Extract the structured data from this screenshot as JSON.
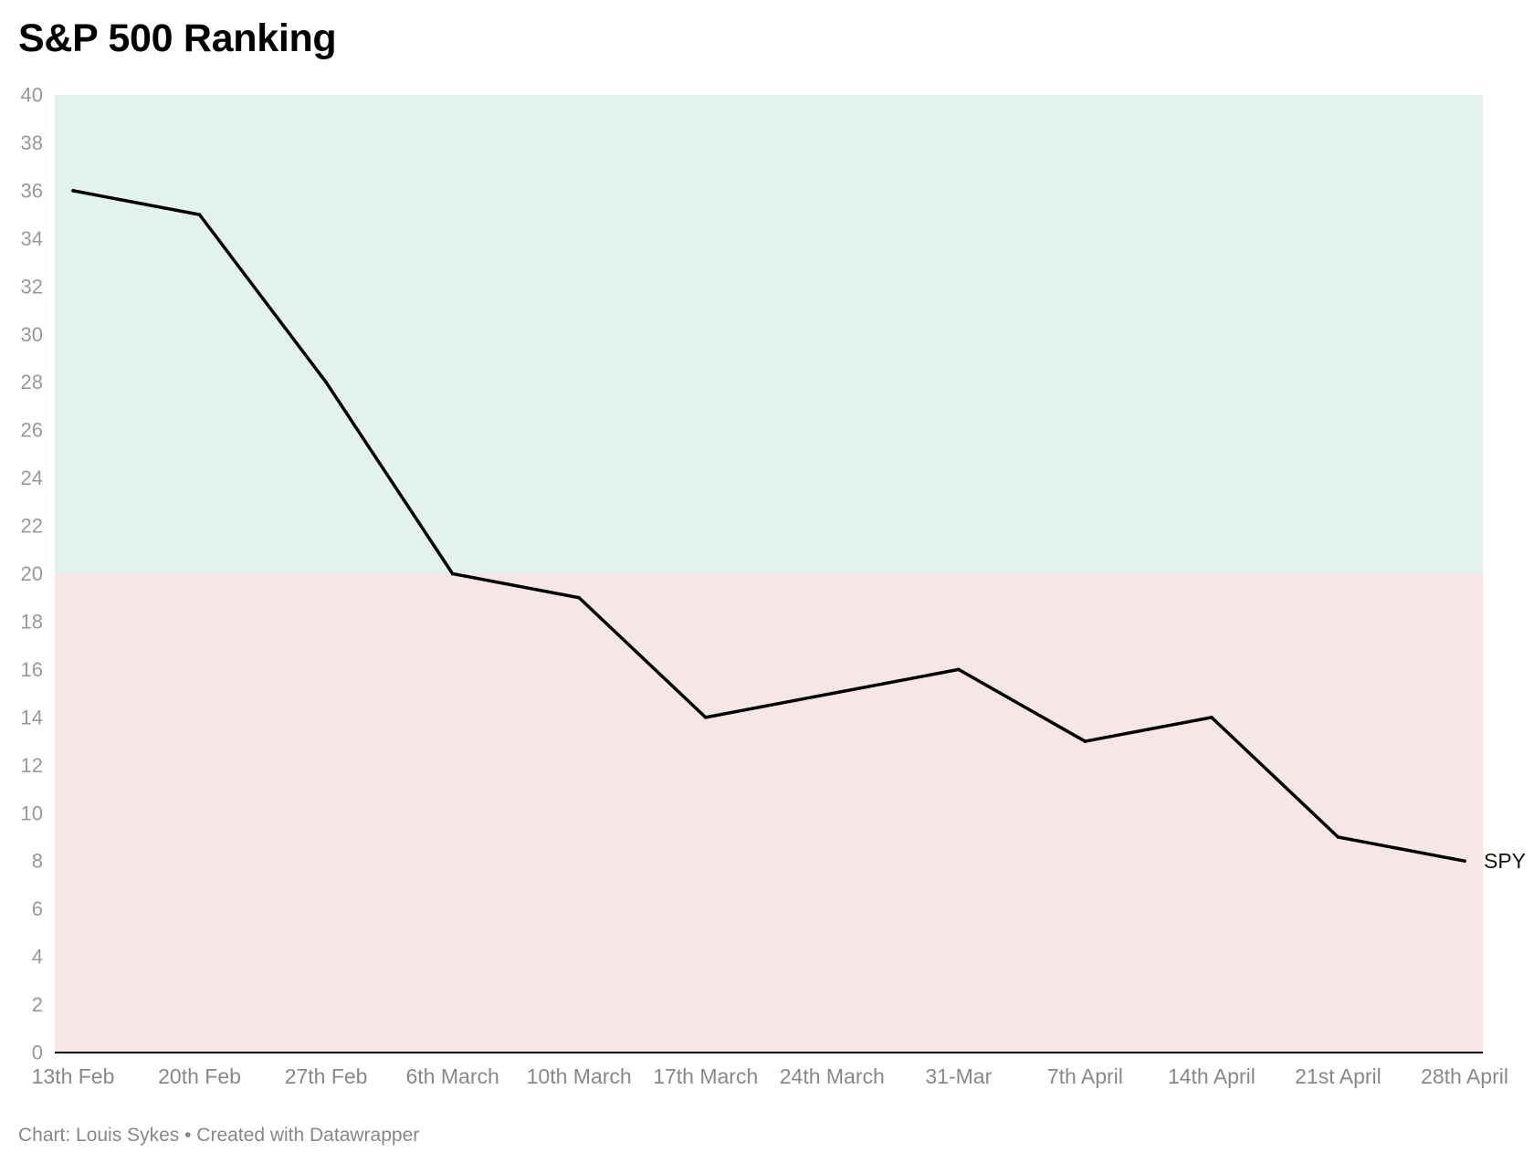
{
  "title": "S&P 500 Ranking",
  "footer": {
    "credit": "Chart: Louis Sykes",
    "separator": "•",
    "created_with": "Created with Datawrapper"
  },
  "colors": {
    "upper_band": "#e3f2ef",
    "lower_band": "#f7e6e6",
    "line": "#000000",
    "axis": "#000000"
  },
  "chart_data": {
    "type": "line",
    "title": "S&P 500 Ranking",
    "xlabel": "",
    "ylabel": "",
    "categories": [
      "13th Feb",
      "20th Feb",
      "27th Feb",
      "6th March",
      "10th March",
      "17th March",
      "24th March",
      "31-Mar",
      "7th April",
      "14th April",
      "21st April",
      "28th April"
    ],
    "series": [
      {
        "name": "SPY",
        "values": [
          36,
          35,
          28,
          20,
          19,
          14,
          15,
          16,
          13,
          14,
          9,
          8
        ]
      }
    ],
    "ylim": [
      0,
      40
    ],
    "yticks": [
      0,
      2,
      4,
      6,
      8,
      10,
      12,
      14,
      16,
      18,
      20,
      22,
      24,
      26,
      28,
      30,
      32,
      34,
      36,
      38,
      40
    ],
    "bands": [
      {
        "from": 20,
        "to": 40,
        "color": "#e3f2ef"
      },
      {
        "from": 0,
        "to": 20,
        "color": "#f7e6e6"
      }
    ],
    "grid": false,
    "legend": "none"
  }
}
